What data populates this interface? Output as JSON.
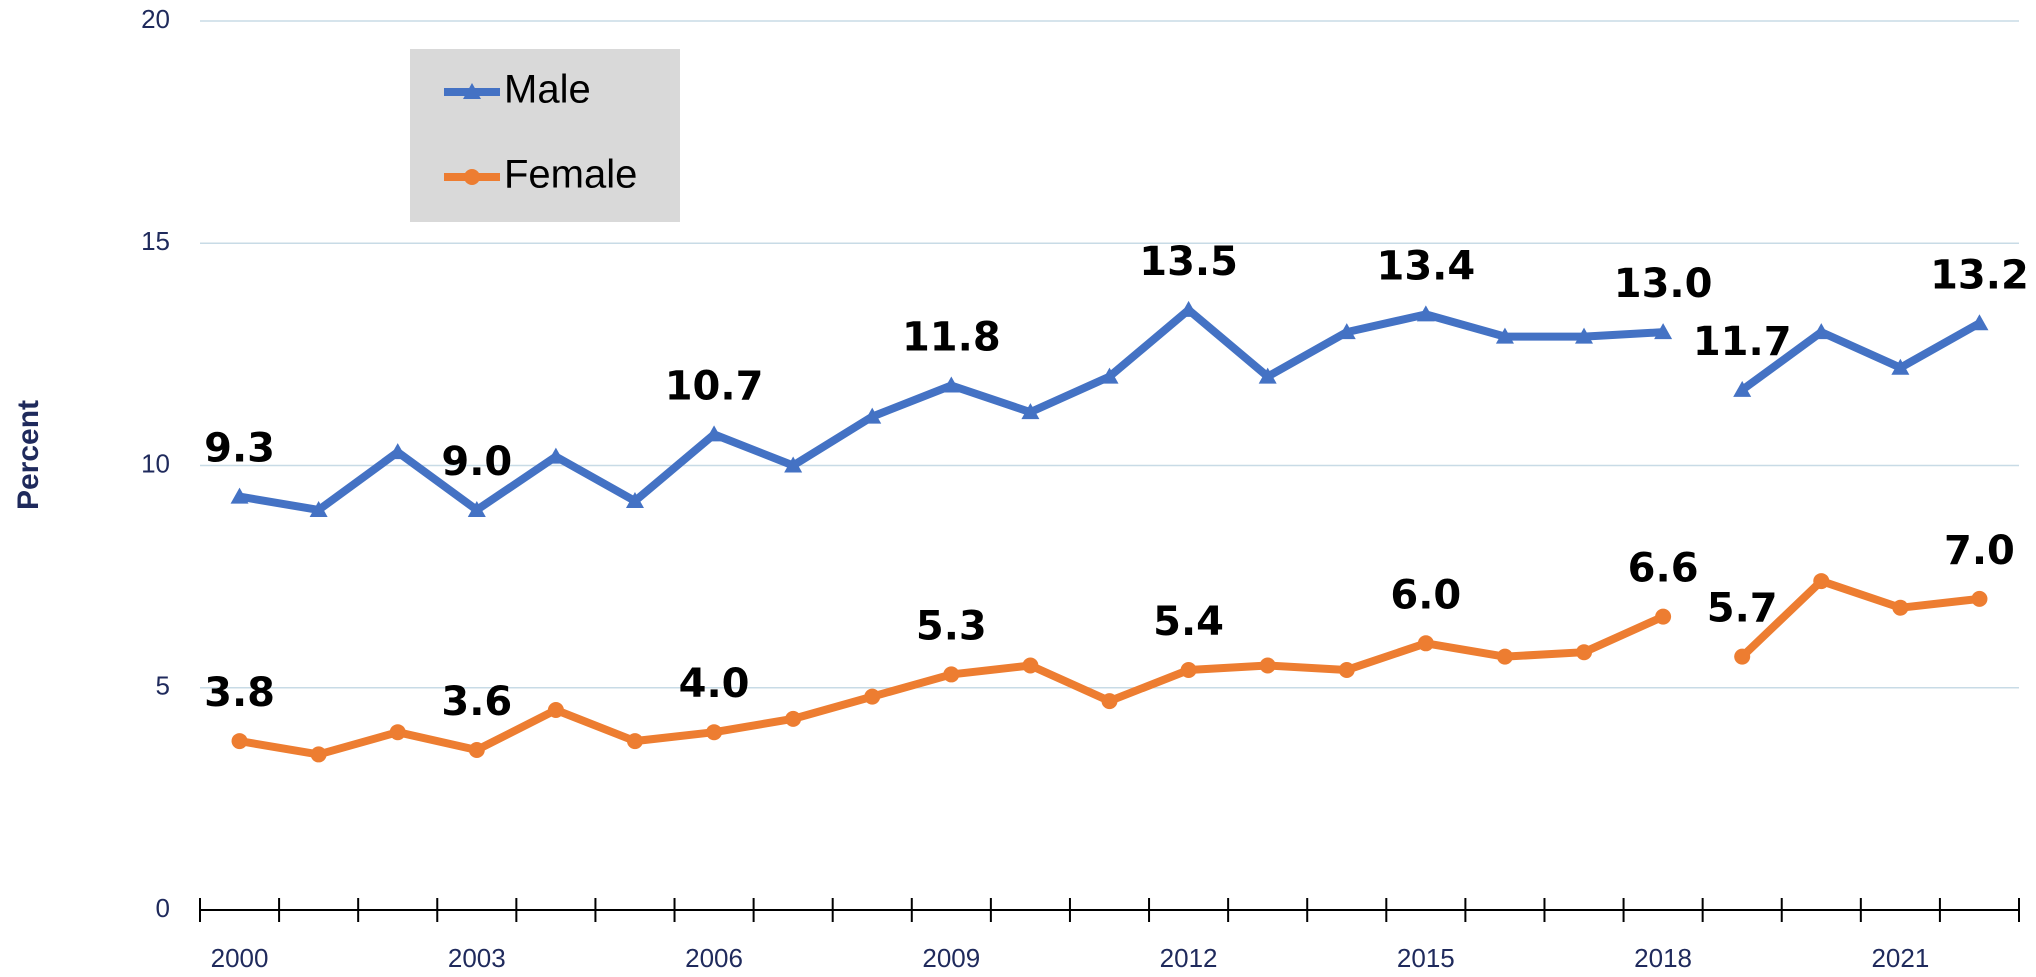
{
  "chart_data": {
    "type": "line",
    "y_label": "Percent",
    "categories": [
      "2000",
      null,
      null,
      "2003",
      null,
      null,
      "2006",
      null,
      null,
      "2009",
      null,
      null,
      "2012",
      null,
      null,
      "2015",
      null,
      null,
      "2018",
      null,
      null,
      "2021",
      null
    ],
    "series": [
      {
        "name": "Male",
        "color": "#4472c4",
        "marker": "triangle",
        "values": [
          9.3,
          9.0,
          10.3,
          9.0,
          10.2,
          9.2,
          10.7,
          10.0,
          11.1,
          11.8,
          11.2,
          12.0,
          13.5,
          12.0,
          13.0,
          13.4,
          12.9,
          12.9,
          13.0,
          11.7,
          13.0,
          12.2,
          13.2
        ],
        "value_labels": [
          "9.3",
          null,
          null,
          "9.0",
          null,
          null,
          "10.7",
          null,
          null,
          "11.8",
          null,
          null,
          "13.5",
          null,
          null,
          "13.4",
          null,
          null,
          "13.0",
          "11.7",
          null,
          null,
          "13.2"
        ]
      },
      {
        "name": "Female",
        "color": "#ed7d31",
        "marker": "circle",
        "values": [
          3.8,
          3.5,
          4.0,
          3.6,
          4.5,
          3.8,
          4.0,
          4.3,
          4.8,
          5.3,
          5.5,
          4.7,
          5.4,
          5.5,
          5.4,
          6.0,
          5.7,
          5.8,
          6.6,
          5.7,
          7.4,
          6.8,
          7.0
        ],
        "value_labels": [
          "3.8",
          null,
          null,
          "3.6",
          null,
          null,
          "4.0",
          null,
          null,
          "5.3",
          null,
          null,
          "5.4",
          null,
          null,
          "6.0",
          null,
          null,
          "6.6",
          "5.7",
          null,
          null,
          "7.0"
        ]
      }
    ],
    "break_after_index": 18,
    "ylim": [
      0,
      20
    ],
    "yticks": [
      0,
      5,
      10,
      15,
      20
    ],
    "grid": true,
    "legend": "top-left"
  }
}
